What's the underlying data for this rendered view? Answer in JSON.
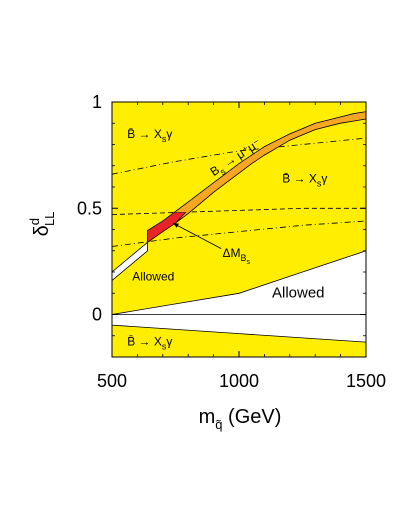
{
  "chart_data": {
    "type": "area",
    "xlabel": "m",
    "xlabel_sub": "q̃",
    "xlabel_unit": " (GeV)",
    "ylabel": "δ",
    "ylabel_sup": "d",
    "ylabel_sub": "LL",
    "xlim": [
      500,
      1500
    ],
    "ylim": [
      -0.2,
      1.0
    ],
    "x_ticks": [
      500,
      1000,
      1500
    ],
    "x_tick_labels": [
      "500",
      "1000",
      "1500"
    ],
    "y_ticks": [
      1,
      0.5,
      0
    ],
    "y_tick_labels": [
      "1",
      "0.5",
      "0"
    ],
    "colors": {
      "excluded": "#ffee00",
      "allowed": "#ffffff",
      "bs_mumu_band": "#f5a623",
      "delta_mbs_region": "#e8232a"
    },
    "regions": {
      "allowed_upper_band": {
        "x": [
          500,
          600,
          640
        ],
        "y_low": [
          0.16,
          0.26,
          0.3
        ],
        "y_high": [
          0.2,
          0.3,
          0.34
        ]
      },
      "allowed_lower_band": {
        "x": [
          500,
          750,
          1000,
          1250,
          1500
        ],
        "y_low": [
          -0.05,
          -0.07,
          -0.09,
          -0.11,
          -0.13
        ],
        "y_high": [
          0.0,
          0.05,
          0.1,
          0.2,
          0.3
        ]
      },
      "bs_mumu_band": {
        "x": [
          640,
          700,
          750,
          800,
          850,
          900,
          950,
          1000,
          1050,
          1100,
          1150,
          1200,
          1250,
          1300,
          1350,
          1400,
          1450,
          1500
        ],
        "y_low": [
          0.34,
          0.39,
          0.43,
          0.475,
          0.525,
          0.575,
          0.62,
          0.665,
          0.71,
          0.75,
          0.785,
          0.82,
          0.845,
          0.87,
          0.885,
          0.9,
          0.91,
          0.92
        ],
        "y_high": [
          0.395,
          0.44,
          0.485,
          0.53,
          0.575,
          0.62,
          0.665,
          0.71,
          0.75,
          0.79,
          0.82,
          0.85,
          0.875,
          0.9,
          0.915,
          0.93,
          0.945,
          0.955
        ]
      },
      "delta_mbs_region": {
        "x_range": [
          640,
          790
        ],
        "y_range": [
          0.34,
          0.48
        ]
      }
    },
    "curves": {
      "dashdot_upper": {
        "x": [
          500,
          750,
          1000,
          1250,
          1500
        ],
        "y": [
          0.66,
          0.72,
          0.77,
          0.8,
          0.83
        ]
      },
      "dashed_upper": {
        "x": [
          500,
          750,
          1000,
          1250,
          1500
        ],
        "y": [
          0.47,
          0.48,
          0.49,
          0.5,
          0.5
        ]
      },
      "dashdot_lower": {
        "x": [
          500,
          750,
          1000,
          1250,
          1500
        ],
        "y": [
          0.32,
          0.36,
          0.39,
          0.42,
          0.44
        ]
      },
      "zero_line": {
        "x": [
          500,
          1500
        ],
        "y": [
          0,
          0
        ]
      }
    },
    "annotations": [
      {
        "id": "bsg-top-left",
        "text": "B̄ → X",
        "sub": "s",
        "tail": "γ",
        "x": 560,
        "y": 0.83
      },
      {
        "id": "bsmumu",
        "text": "B",
        "sub": "s",
        "tail": " → μ⁺μ⁻",
        "x": 900,
        "y": 0.65
      },
      {
        "id": "bsg-right",
        "text": "B̄ → X",
        "sub": "s",
        "tail": "γ",
        "x": 1170,
        "y": 0.62
      },
      {
        "id": "dmbs",
        "text": "ΔM",
        "sub": "B",
        "subsub": "s",
        "x": 935,
        "y": 0.27
      },
      {
        "id": "allowed-small",
        "text": "Allowed",
        "x": 580,
        "y": 0.16
      },
      {
        "id": "allowed-big",
        "text": "Allowed",
        "x": 1130,
        "y": 0.08
      },
      {
        "id": "bsg-bottom",
        "text": "B̄ → X",
        "sub": "s",
        "tail": "γ",
        "x": 560,
        "y": -0.145
      }
    ]
  }
}
